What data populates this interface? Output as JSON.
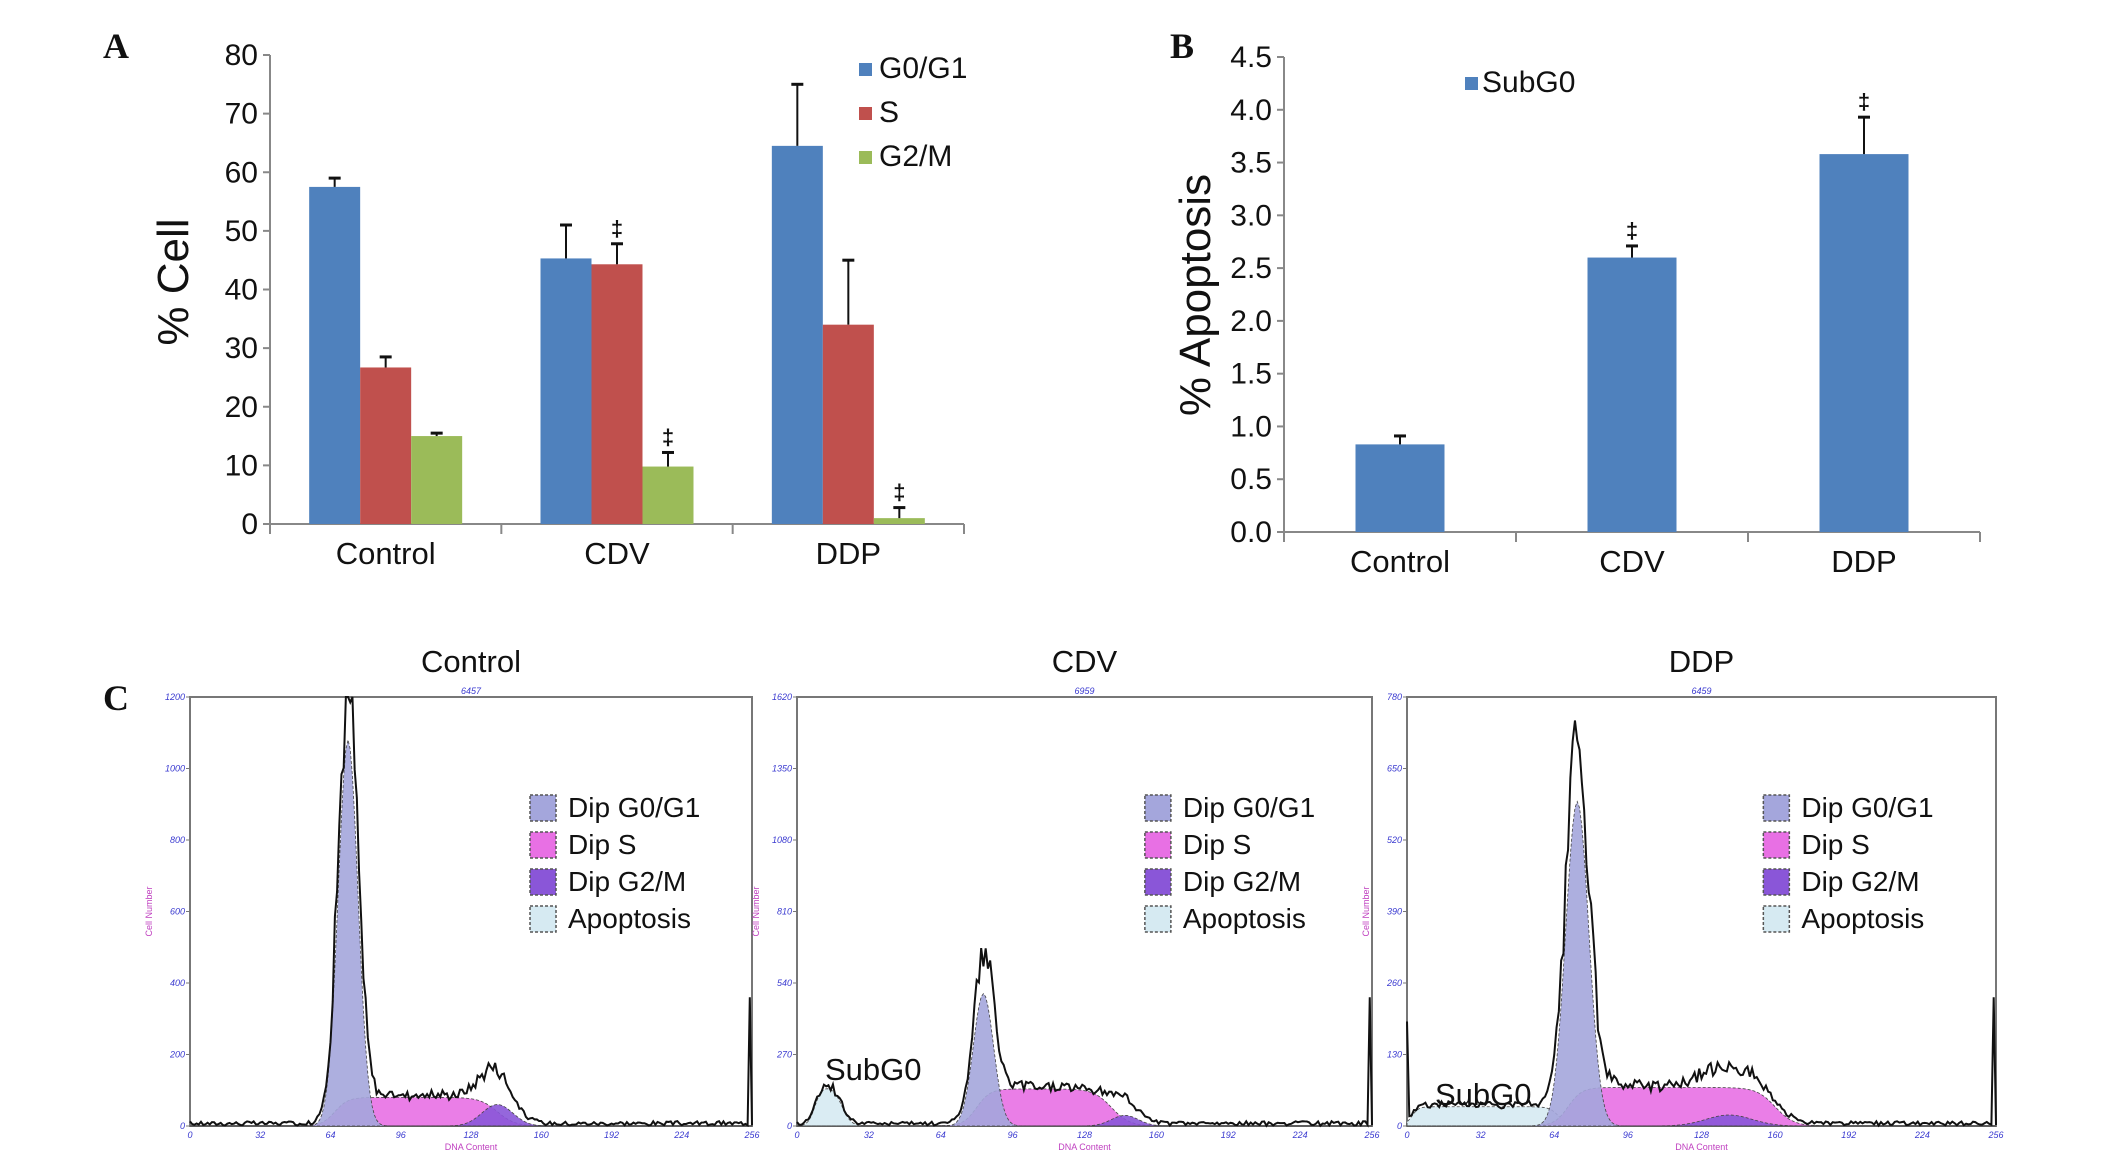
{
  "panel_letters": {
    "a": "A",
    "b": "B",
    "c": "C"
  },
  "colors": {
    "g0g1": "#4f81bd",
    "s": "#c0504d",
    "g2m": "#9bbb59",
    "subg0": "#4f81bd",
    "dip_g0g1": "#a4a6dc",
    "dip_s": "#e870e4",
    "dip_g2m": "#8a56d8",
    "apoptosis": "#d6eaf2"
  },
  "chart_data": [
    {
      "type": "bar",
      "panel": "A",
      "ylabel": "% Cell",
      "ylim": [
        0,
        80
      ],
      "yticks": [
        "0",
        "10",
        "20",
        "30",
        "40",
        "50",
        "60",
        "70",
        "80"
      ],
      "categories": [
        "Control",
        "CDV",
        "DDP"
      ],
      "legend_placement": "top-right",
      "series": [
        {
          "name": "G0/G1",
          "values": [
            57.5,
            45.3,
            64.5
          ],
          "error_upper": [
            59.0,
            51.0,
            75.0
          ],
          "significance": [
            "",
            "",
            ""
          ]
        },
        {
          "name": "S",
          "values": [
            26.7,
            44.3,
            34.0
          ],
          "error_upper": [
            28.5,
            47.8,
            45.0
          ],
          "significance": [
            "",
            "‡",
            ""
          ]
        },
        {
          "name": "G2/M",
          "values": [
            15.0,
            9.8,
            1.0
          ],
          "error_upper": [
            15.5,
            12.2,
            2.8
          ],
          "significance": [
            "",
            "‡",
            "‡"
          ]
        }
      ]
    },
    {
      "type": "bar",
      "panel": "B",
      "ylabel": "% Apoptosis",
      "ylim": [
        0,
        4.5
      ],
      "yticks": [
        "0.0",
        "0.5",
        "1.0",
        "1.5",
        "2.0",
        "2.5",
        "3.0",
        "3.5",
        "4.0",
        "4.5"
      ],
      "categories": [
        "Control",
        "CDV",
        "DDP"
      ],
      "legend_placement": "top-center",
      "series": [
        {
          "name": "SubG0",
          "values": [
            0.83,
            2.6,
            3.58
          ],
          "error_upper": [
            0.91,
            2.71,
            3.93
          ],
          "significance": [
            "",
            "‡",
            "‡"
          ]
        }
      ]
    },
    {
      "type": "area",
      "panel": "C",
      "xlabel": "DNA Content",
      "ylabel": "Cell Number",
      "xlim": [
        0,
        256
      ],
      "xticks": [
        "0",
        "32",
        "64",
        "96",
        "128",
        "160",
        "192",
        "224",
        "256"
      ],
      "legend": [
        "Dip G0/G1",
        "Dip S",
        "Dip G2/M",
        "Apoptosis"
      ],
      "histograms": [
        {
          "title": "Control",
          "header": "6457",
          "ylim": [
            0,
            1200
          ],
          "yticks": [
            "0",
            "200",
            "400",
            "600",
            "800",
            "1000",
            "1200"
          ],
          "g0g1": {
            "center": 72,
            "height": 1080,
            "sd": 4.5
          },
          "s": {
            "from": 66,
            "to": 140,
            "height": 80
          },
          "g2m": {
            "center": 140,
            "height": 60,
            "sd": 7
          },
          "apoptosis": {
            "from": 0,
            "to": 0,
            "height": 0
          },
          "annotation": ""
        },
        {
          "title": "CDV",
          "header": "6959",
          "ylim": [
            0,
            1620
          ],
          "yticks": [
            "0",
            "270",
            "540",
            "810",
            "1080",
            "1350",
            "1620"
          ],
          "g0g1": {
            "center": 83,
            "height": 500,
            "sd": 4.5
          },
          "s": {
            "from": 80,
            "to": 140,
            "height": 140
          },
          "g2m": {
            "center": 146,
            "height": 40,
            "sd": 6
          },
          "apoptosis": {
            "from": 8,
            "to": 20,
            "height": 150
          },
          "annotation": "SubG0"
        },
        {
          "title": "DDP",
          "header": "6459",
          "ylim": [
            0,
            780
          ],
          "yticks": [
            "0",
            "130",
            "260",
            "390",
            "520",
            "650",
            "780"
          ],
          "g0g1": {
            "center": 74,
            "height": 590,
            "sd": 5
          },
          "s": {
            "from": 70,
            "to": 160,
            "height": 70
          },
          "g2m": {
            "center": 140,
            "height": 20,
            "sd": 10
          },
          "apoptosis": {
            "from": 2,
            "to": 66,
            "height": 35
          },
          "annotation": "SubG0"
        }
      ]
    }
  ]
}
